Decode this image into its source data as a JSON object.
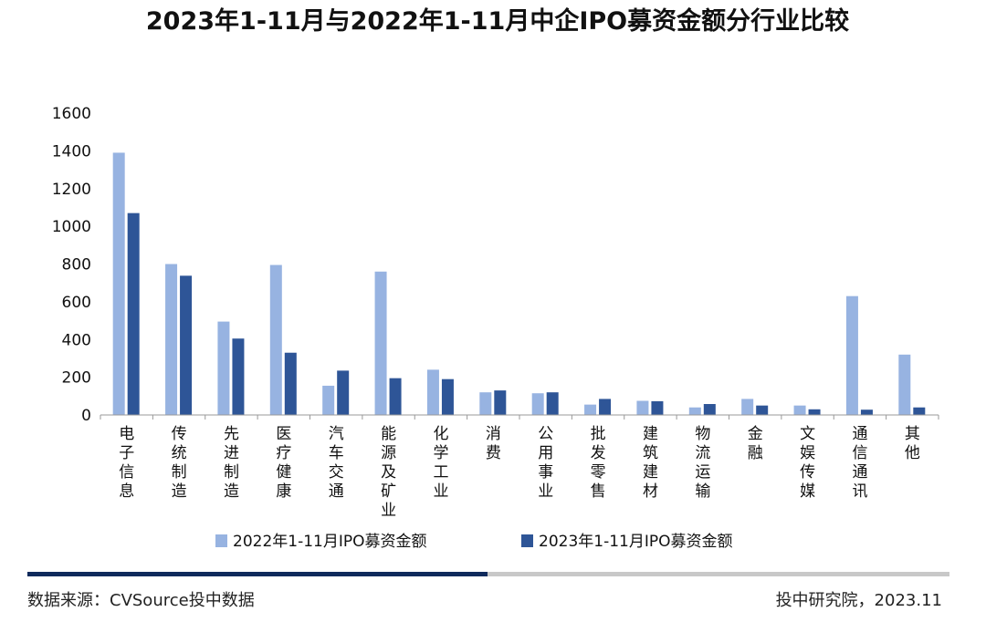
{
  "chart_data": {
    "type": "bar",
    "title": "2023年1-11月与2022年1-11月中企IPO募资金额分行业比较",
    "categories": [
      "电子信息",
      "传统制造",
      "先进制造",
      "医疗健康",
      "汽车交通",
      "能源及矿业",
      "化学工业",
      "消费",
      "公用事业",
      "批发零售",
      "建筑建材",
      "物流运输",
      "金融",
      "文娱传媒",
      "通信通讯",
      "其他"
    ],
    "series": [
      {
        "name": "2022年1-11月IPO募资金额",
        "color": "#97b3e1",
        "values": [
          1390,
          800,
          495,
          795,
          155,
          760,
          240,
          120,
          115,
          55,
          75,
          40,
          85,
          50,
          630,
          320
        ]
      },
      {
        "name": "2023年1-11月IPO募资金额",
        "color": "#2e5597",
        "values": [
          1070,
          738,
          405,
          330,
          235,
          195,
          190,
          130,
          120,
          85,
          73,
          58,
          50,
          30,
          28,
          40
        ]
      }
    ],
    "yticks": [
      0,
      200,
      400,
      600,
      800,
      1000,
      1200,
      1400,
      1600
    ],
    "ylim": [
      0,
      1600
    ],
    "grid": false,
    "legend_position": "bottom"
  },
  "footer": {
    "source": "数据来源：CVSource投中数据",
    "credit": "投中研究院，2023.11",
    "bar_dark_color": "#0f2a5c",
    "bar_light_color": "#c8c8c8"
  }
}
